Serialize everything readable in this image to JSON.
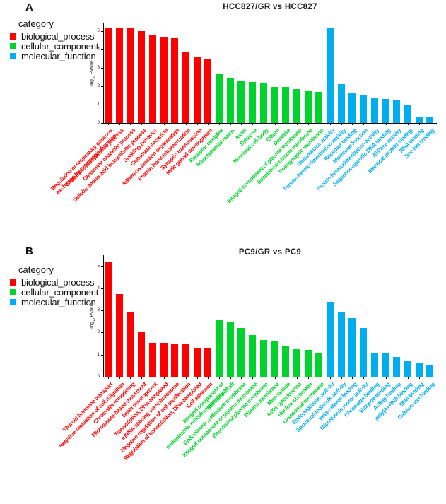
{
  "legend": {
    "title": "category",
    "items": [
      {
        "label": "biological_process",
        "color": "#FB0200"
      },
      {
        "label": "cellular_component",
        "color": "#00D42C"
      },
      {
        "label": "molecular_function",
        "color": "#00AEEF"
      }
    ]
  },
  "chart_data": [
    {
      "type": "bar",
      "panel_label": "A",
      "title": "HCC827/GR  vs  HCC827",
      "ylabel": "-log10 Pvalue",
      "ylim": [
        0,
        5.4
      ],
      "yticks": [
        0,
        1,
        2,
        3,
        4,
        5
      ],
      "grid": false,
      "legend_position": "top-left",
      "bars": [
        {
          "label": "Regulation of respiratory gaseous\nexchange by neurological system",
          "category": "biological_process",
          "value": 5.2
        },
        {
          "label": "Glutamate biosynthetic process",
          "category": "biological_process",
          "value": 5.2
        },
        {
          "label": "Glutamine catabolic process",
          "category": "biological_process",
          "value": 5.2
        },
        {
          "label": "Cellular amino acid biosynthetic process",
          "category": "biological_process",
          "value": 5.0
        },
        {
          "label": "Suckling behavior",
          "category": "biological_process",
          "value": 4.8
        },
        {
          "label": "Glutamate secretion",
          "category": "biological_process",
          "value": 4.7
        },
        {
          "label": "Adherens junction organization",
          "category": "biological_process",
          "value": 4.6
        },
        {
          "label": "Protein homotetramerization",
          "category": "biological_process",
          "value": 3.9
        },
        {
          "label": "Synaptic transmission",
          "category": "biological_process",
          "value": 3.6
        },
        {
          "label": "Male gonad development",
          "category": "biological_process",
          "value": 3.5
        },
        {
          "label": "Receptor complex",
          "category": "cellular_component",
          "value": 2.65
        },
        {
          "label": "Mitochondrial matrix",
          "category": "cellular_component",
          "value": 2.45
        },
        {
          "label": "Axon",
          "category": "cellular_component",
          "value": 2.3
        },
        {
          "label": "Synapse",
          "category": "cellular_component",
          "value": 2.25
        },
        {
          "label": "Neuronal cell body",
          "category": "cellular_component",
          "value": 2.15
        },
        {
          "label": "Cilium",
          "category": "cellular_component",
          "value": 1.95
        },
        {
          "label": "Dendrite",
          "category": "cellular_component",
          "value": 1.95
        },
        {
          "label": "Integral component of plasma membrane",
          "category": "cellular_component",
          "value": 1.85
        },
        {
          "label": "Basolateral plasma membrane",
          "category": "cellular_component",
          "value": 1.75
        },
        {
          "label": "Postsynaptic membrane",
          "category": "cellular_component",
          "value": 1.7
        },
        {
          "label": "Glutaminase activity",
          "category": "molecular_function",
          "value": 5.2
        },
        {
          "label": "Protein heterodimerization activity",
          "category": "molecular_function",
          "value": 2.1
        },
        {
          "label": "Receptor binding",
          "category": "molecular_function",
          "value": 1.65
        },
        {
          "label": "Molecular function",
          "category": "molecular_function",
          "value": 1.5
        },
        {
          "label": "Protein heterodimerization activity",
          "category": "molecular_function",
          "value": 1.4
        },
        {
          "label": "Sequence-specific DNA binding",
          "category": "molecular_function",
          "value": 1.3
        },
        {
          "label": "ATPase activity",
          "category": "molecular_function",
          "value": 1.25
        },
        {
          "label": "Identical protein binding",
          "category": "molecular_function",
          "value": 0.95
        },
        {
          "label": "RNA binding",
          "category": "molecular_function",
          "value": 0.35
        },
        {
          "label": "Zinc ion binding",
          "category": "molecular_function",
          "value": 0.3
        }
      ]
    },
    {
      "type": "bar",
      "panel_label": "B",
      "title": "PC9/GR  vs  PC9",
      "ylabel": "-log10 Pvalue",
      "ylim": [
        0,
        5.4
      ],
      "yticks": [
        0,
        1,
        2,
        3,
        4,
        5
      ],
      "grid": false,
      "legend_position": "top-left",
      "bars": [
        {
          "label": "Thyroid hormone transport",
          "category": "biological_process",
          "value": 5.2
        },
        {
          "label": "Negative regulation of cell migration",
          "category": "biological_process",
          "value": 3.75
        },
        {
          "label": "Chromatin remodeling",
          "category": "biological_process",
          "value": 2.9
        },
        {
          "label": "Microtubule-based movement",
          "category": "biological_process",
          "value": 2.05
        },
        {
          "label": "Brain development",
          "category": "biological_process",
          "value": 1.55
        },
        {
          "label": "Transcription, DNA-templated",
          "category": "biological_process",
          "value": 1.55
        },
        {
          "label": "mRNA splicing via spliceosome",
          "category": "biological_process",
          "value": 1.5
        },
        {
          "label": "Negative regulation of cell proliferation",
          "category": "biological_process",
          "value": 1.5
        },
        {
          "label": "Regulation of transcription, DNA-templated",
          "category": "biological_process",
          "value": 1.3
        },
        {
          "label": "Cell adhesion",
          "category": "biological_process",
          "value": 1.3
        },
        {
          "label": "Integral component of\nendoplasmic reticulum membrane",
          "category": "cellular_component",
          "value": 2.55
        },
        {
          "label": "Membrane raft",
          "category": "cellular_component",
          "value": 2.45
        },
        {
          "label": "Endoplasmic reticulum membrane",
          "category": "cellular_component",
          "value": 2.2
        },
        {
          "label": "Integral component of plasma membrane",
          "category": "cellular_component",
          "value": 1.9
        },
        {
          "label": "Basolateral plasma membrane",
          "category": "cellular_component",
          "value": 1.65
        },
        {
          "label": "Plasma membrane",
          "category": "cellular_component",
          "value": 1.6
        },
        {
          "label": "Microtubule",
          "category": "cellular_component",
          "value": 1.4
        },
        {
          "label": "Actin cytoskeleton",
          "category": "cellular_component",
          "value": 1.25
        },
        {
          "label": "Nuclear chromatin",
          "category": "cellular_component",
          "value": 1.2
        },
        {
          "label": "Lysosomal membrane",
          "category": "cellular_component",
          "value": 1.1
        },
        {
          "label": "Endopeptidase activity",
          "category": "molecular_function",
          "value": 3.4
        },
        {
          "label": "Structural molecule activity",
          "category": "molecular_function",
          "value": 2.9
        },
        {
          "label": "beta-catenin binding",
          "category": "molecular_function",
          "value": 2.65
        },
        {
          "label": "Microtubule motor activity",
          "category": "molecular_function",
          "value": 2.2
        },
        {
          "label": "Chromatin binding",
          "category": "molecular_function",
          "value": 1.1
        },
        {
          "label": "Enzyme binding",
          "category": "molecular_function",
          "value": 1.05
        },
        {
          "label": "Acting binding",
          "category": "molecular_function",
          "value": 0.9
        },
        {
          "label": "poly(A) RNA binding",
          "category": "molecular_function",
          "value": 0.7
        },
        {
          "label": "DNA binding",
          "category": "molecular_function",
          "value": 0.6
        },
        {
          "label": "Calcium ion binding",
          "category": "molecular_function",
          "value": 0.5
        }
      ]
    }
  ]
}
